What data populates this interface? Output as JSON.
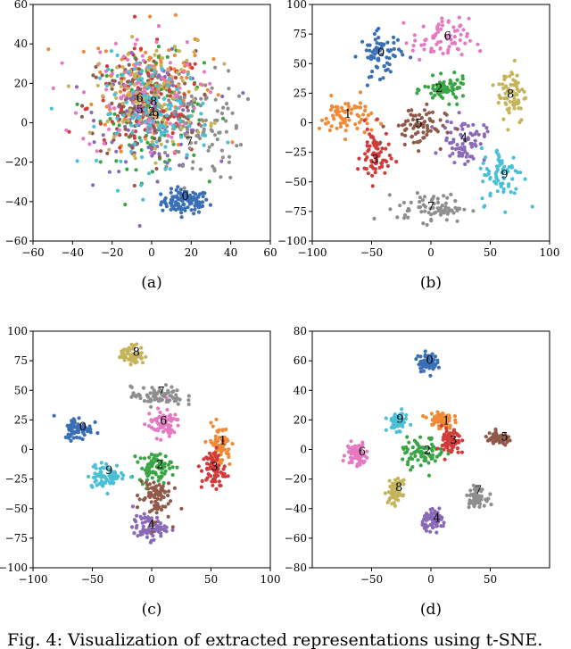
{
  "figure": {
    "caption": "Fig. 4: Visualization of extracted representations using t-SNE."
  },
  "chart_data": [
    {
      "type": "scatter",
      "panel_label": "(a)",
      "xlim": [
        -60,
        60
      ],
      "ylim": [
        -60,
        60
      ],
      "xticks": [
        -60,
        -40,
        -20,
        0,
        20,
        40,
        60
      ],
      "yticks": [
        -60,
        -40,
        -20,
        0,
        20,
        40,
        60
      ],
      "clusters": [
        {
          "label": "0",
          "center": [
            17,
            -40
          ],
          "spread": [
            6,
            3
          ],
          "text_at": [
            17,
            -37
          ]
        },
        {
          "label": "1",
          "center": [
            0,
            20
          ],
          "spread": [
            15,
            15
          ]
        },
        {
          "label": "2",
          "center": [
            0,
            6
          ],
          "spread": [
            13,
            14
          ],
          "text_at": [
            0,
            6
          ]
        },
        {
          "label": "3",
          "center": [
            -2,
            8
          ],
          "spread": [
            15,
            14
          ]
        },
        {
          "label": "4",
          "center": [
            2,
            4
          ],
          "spread": [
            14,
            14
          ]
        },
        {
          "label": "5",
          "center": [
            -6,
            8
          ],
          "spread": [
            14,
            14
          ],
          "text_at": [
            -6,
            7
          ]
        },
        {
          "label": "6",
          "center": [
            -6,
            14
          ],
          "spread": [
            15,
            15
          ],
          "text_at": [
            -6,
            13
          ]
        },
        {
          "label": "7",
          "center": [
            22,
            -2
          ],
          "spread": [
            12,
            14
          ],
          "text_at": [
            19,
            -9
          ]
        },
        {
          "label": "8",
          "center": [
            0,
            13
          ],
          "spread": [
            14,
            14
          ],
          "text_at": [
            1,
            11
          ]
        },
        {
          "label": "9",
          "center": [
            2,
            5
          ],
          "spread": [
            14,
            14
          ],
          "text_at": [
            2,
            4
          ]
        }
      ]
    },
    {
      "type": "scatter",
      "panel_label": "(b)",
      "xlim": [
        -100,
        100
      ],
      "ylim": [
        -100,
        100
      ],
      "xticks": [
        -100,
        -50,
        0,
        50,
        100
      ],
      "yticks": [
        -100,
        -75,
        -50,
        -25,
        0,
        25,
        50,
        75,
        100
      ],
      "clusters": [
        {
          "label": "0",
          "center": [
            -42,
            58
          ],
          "spread": [
            9,
            9
          ],
          "text_at": [
            -42,
            60
          ]
        },
        {
          "label": "1",
          "center": [
            -72,
            5
          ],
          "spread": [
            11,
            8
          ],
          "text_at": [
            -70,
            8
          ]
        },
        {
          "label": "2",
          "center": [
            12,
            28
          ],
          "spread": [
            9,
            5
          ],
          "text_at": [
            7,
            30
          ]
        },
        {
          "label": "3",
          "center": [
            -47,
            -28
          ],
          "spread": [
            6,
            12
          ],
          "text_at": [
            -47,
            -30
          ]
        },
        {
          "label": "4",
          "center": [
            28,
            -15
          ],
          "spread": [
            9,
            9
          ],
          "text_at": [
            28,
            -12
          ]
        },
        {
          "label": "5",
          "center": [
            -12,
            -3
          ],
          "spread": [
            12,
            9
          ],
          "text_at": [
            -10,
            0
          ]
        },
        {
          "label": "6",
          "center": [
            8,
            70
          ],
          "spread": [
            12,
            9
          ],
          "text_at": [
            14,
            74
          ]
        },
        {
          "label": "7",
          "center": [
            2,
            -72
          ],
          "spread": [
            15,
            6
          ],
          "text_at": [
            0,
            -70
          ]
        },
        {
          "label": "8",
          "center": [
            68,
            25
          ],
          "spread": [
            6,
            13
          ],
          "text_at": [
            67,
            25
          ]
        },
        {
          "label": "9",
          "center": [
            60,
            -45
          ],
          "spread": [
            9,
            12
          ],
          "text_at": [
            62,
            -43
          ]
        }
      ]
    },
    {
      "type": "scatter",
      "panel_label": "(c)",
      "xlim": [
        -100,
        100
      ],
      "ylim": [
        -100,
        100
      ],
      "xticks": [
        -100,
        -50,
        0,
        50,
        100
      ],
      "yticks": [
        -100,
        -75,
        -50,
        -25,
        0,
        25,
        50,
        75,
        100
      ],
      "clusters": [
        {
          "label": "0",
          "center": [
            -62,
            18
          ],
          "spread": [
            6,
            5
          ],
          "text_at": [
            -58,
            20
          ]
        },
        {
          "label": "1",
          "center": [
            57,
            3
          ],
          "spread": [
            5,
            9
          ],
          "text_at": [
            60,
            8
          ]
        },
        {
          "label": "2",
          "center": [
            3,
            -15
          ],
          "spread": [
            7,
            6
          ],
          "text_at": [
            7,
            -12
          ]
        },
        {
          "label": "3",
          "center": [
            52,
            -17
          ],
          "spread": [
            5,
            9
          ],
          "text_at": [
            53,
            -14
          ]
        },
        {
          "label": "4",
          "center": [
            -2,
            -66
          ],
          "spread": [
            7,
            5
          ],
          "text_at": [
            0,
            -63
          ]
        },
        {
          "label": "5",
          "center": [
            2,
            -40
          ],
          "spread": [
            7,
            10
          ]
        },
        {
          "label": "6",
          "center": [
            10,
            22
          ],
          "spread": [
            7,
            6
          ],
          "text_at": [
            10,
            25
          ]
        },
        {
          "label": "7",
          "center": [
            5,
            45
          ],
          "spread": [
            11,
            4
          ],
          "text_at": [
            8,
            50
          ]
        },
        {
          "label": "8",
          "center": [
            -16,
            80
          ],
          "spread": [
            5,
            4
          ],
          "text_at": [
            -13,
            83
          ]
        },
        {
          "label": "9",
          "center": [
            -38,
            -22
          ],
          "spread": [
            8,
            5
          ],
          "text_at": [
            -36,
            -17
          ]
        }
      ]
    },
    {
      "type": "scatter",
      "panel_label": "(d)",
      "xlim": [
        -100,
        100
      ],
      "ylim": [
        -80,
        80
      ],
      "xticks": [
        -50,
        0,
        50
      ],
      "yticks": [
        -80,
        -60,
        -40,
        -20,
        0,
        20,
        40,
        60,
        80
      ],
      "clusters": [
        {
          "label": "0",
          "center": [
            -3,
            59
          ],
          "spread": [
            4,
            3
          ],
          "text_at": [
            -1,
            61
          ]
        },
        {
          "label": "1",
          "center": [
            8,
            20
          ],
          "spread": [
            5,
            3
          ],
          "text_at": [
            13,
            20
          ]
        },
        {
          "label": "2",
          "center": [
            -7,
            -2
          ],
          "spread": [
            9,
            5
          ],
          "text_at": [
            -3,
            0
          ]
        },
        {
          "label": "3",
          "center": [
            17,
            5
          ],
          "spread": [
            4,
            5
          ],
          "text_at": [
            19,
            7
          ]
        },
        {
          "label": "4",
          "center": [
            3,
            -48
          ],
          "spread": [
            5,
            3
          ],
          "text_at": [
            5,
            -46
          ]
        },
        {
          "label": "5",
          "center": [
            57,
            7
          ],
          "spread": [
            6,
            2
          ],
          "text_at": [
            62,
            9
          ]
        },
        {
          "label": "6",
          "center": [
            -63,
            -3
          ],
          "spread": [
            4,
            4
          ],
          "text_at": [
            -58,
            -1
          ]
        },
        {
          "label": "7",
          "center": [
            38,
            -32
          ],
          "spread": [
            4,
            3
          ],
          "text_at": [
            40,
            -27
          ]
        },
        {
          "label": "8",
          "center": [
            -30,
            -29
          ],
          "spread": [
            3,
            4
          ],
          "text_at": [
            -27,
            -25
          ]
        },
        {
          "label": "9",
          "center": [
            -28,
            19
          ],
          "spread": [
            4,
            3
          ],
          "text_at": [
            -26,
            21
          ]
        }
      ]
    }
  ],
  "palette": {
    "0": "#3a6fb5",
    "1": "#f08a36",
    "2": "#3aa544",
    "3": "#d23b3b",
    "4": "#8a6ab8",
    "5": "#8f5a4a",
    "6": "#e57ac2",
    "7": "#8e8e8e",
    "8": "#c6b45c",
    "9": "#4bbfd6"
  }
}
